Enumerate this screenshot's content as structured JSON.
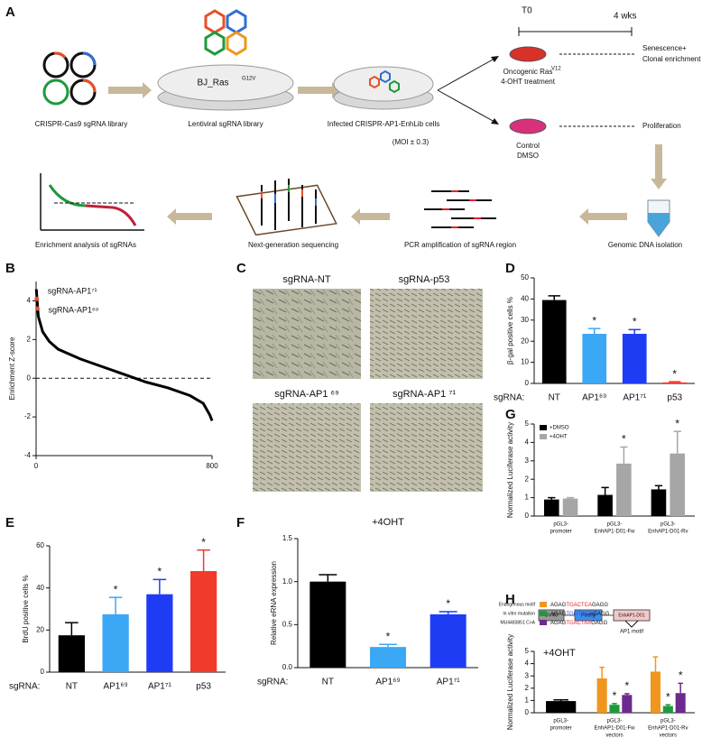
{
  "panel_labels": [
    "A",
    "B",
    "C",
    "D",
    "E",
    "F",
    "G",
    "H"
  ],
  "panel_a": {
    "timeline": [
      "T0",
      "4 wks"
    ],
    "library": "CRISPR-Cas9 sgRNA library",
    "dish_label": [
      "BJ_Ras",
      "G12V"
    ],
    "lentiviral": "Lentiviral sgRNA library",
    "infected": [
      "Infected CRISPR-AP1-EnhLib cells",
      "(MOI ± 0.3)"
    ],
    "treatment": [
      "Oncogenic Ras",
      "V12",
      "4-OHT treatment"
    ],
    "senescence": [
      "Senescence+",
      "Clonal enrichment"
    ],
    "control": [
      "Control",
      "DMSO"
    ],
    "proliferation": "Proliferation",
    "genomic": "Genomic DNA isolation",
    "pcr": "PCR amplification of sgRNA region",
    "ngs": "Next-generation sequencing",
    "analysis": "Enrichment analysis of sgRNAs"
  },
  "panel_c": {
    "labels": [
      "sgRNA-NT",
      "sgRNA-p53",
      "sgRNA-AP1 ⁶⁹",
      "sgRNA-AP1 ⁷¹"
    ]
  },
  "chart_data": [
    {
      "type": "line",
      "ylabel": "Enrichment Z-score",
      "x": [
        1,
        10,
        30,
        60,
        100,
        200,
        300,
        400,
        500,
        600,
        700,
        760,
        790,
        800
      ],
      "values": [
        4.6,
        3.2,
        2.4,
        1.9,
        1.5,
        1.0,
        0.6,
        0.2,
        -0.2,
        -0.5,
        -0.9,
        -1.3,
        -1.9,
        -2.2
      ],
      "color": "#000000",
      "reference_line": 0,
      "highlights": [
        {
          "label": "sgRNA-AP1⁷¹",
          "x": 3,
          "y": 4.1,
          "color": "#e8502a"
        },
        {
          "label": "sgRNA-AP1⁶⁹",
          "x": 6,
          "y": 3.6,
          "color": "#e8502a"
        }
      ],
      "xlim": [
        0,
        800
      ],
      "xticks": [
        0,
        800
      ],
      "ylim": [
        -4,
        5
      ],
      "yticks": [
        -4,
        -2,
        0,
        2,
        4
      ]
    },
    {
      "type": "bar",
      "ylabel": "β-gal positive cells %",
      "xlabel": "sgRNA:",
      "categories": [
        "NT",
        "AP1⁶⁹",
        "AP1⁷¹",
        "p53"
      ],
      "values": [
        39.5,
        23.5,
        23.5,
        0.5
      ],
      "errors": [
        2,
        2.5,
        2,
        0.3
      ],
      "colors": [
        "#000000",
        "#3ba8f5",
        "#1f3cf5",
        "#f03a2a"
      ],
      "significance": [
        null,
        "*",
        "*",
        "*"
      ],
      "ylim": [
        0,
        50
      ],
      "yticks": [
        0,
        10,
        20,
        30,
        40,
        50
      ]
    },
    {
      "type": "bar",
      "ylabel": "Normalized Luciferase activity",
      "categories": [
        [
          "pGL3-",
          "promoter"
        ],
        [
          "pGL3-",
          "EnhAP1-D01-Fw"
        ],
        [
          "pGL3-",
          "EnhAP1-D01-Rv"
        ]
      ],
      "series": [
        {
          "name": "+DMSO",
          "color": "#000000",
          "values": [
            0.9,
            1.15,
            1.45
          ],
          "errors": [
            0.1,
            0.4,
            0.2
          ]
        },
        {
          "name": "+4OHT",
          "color": "#a6a6a6",
          "values": [
            0.95,
            2.85,
            3.4
          ],
          "errors": [
            0.05,
            0.9,
            1.2
          ],
          "significance": [
            null,
            "*",
            "*"
          ]
        }
      ],
      "legend": "upper left",
      "ylim": [
        0,
        5
      ],
      "yticks": [
        0,
        1,
        2,
        3,
        4,
        5
      ]
    },
    {
      "type": "bar",
      "ylabel": "Normalized Luciferase activity",
      "title": "+4OHT",
      "construct": [
        "SV40",
        "Firefly",
        "EnhAP1-D01",
        "AP1 motif"
      ],
      "categories": [
        [
          "pGL3-",
          "promoter"
        ],
        [
          "pGL3-",
          "EnhAP1-D01-Fw",
          "vectors"
        ],
        [
          "pGL3-",
          "EnhAP1-D01-Rv",
          "vectors"
        ]
      ],
      "series": [
        {
          "color": "#000000",
          "values": [
            0.95,
            null,
            null
          ],
          "errors": [
            0.1,
            null,
            null
          ]
        },
        {
          "name": "Endogenous motif",
          "color": "#f0961e",
          "motif": [
            "AGAG",
            "TGACTCA",
            "GAGG"
          ],
          "motif_color": "#e8202a",
          "values": [
            null,
            2.8,
            3.35
          ],
          "errors": [
            null,
            0.9,
            1.2
          ]
        },
        {
          "name": "In vitro mutation",
          "color": "#1e9a3c",
          "motif": [
            "AGAG",
            "TGGTGCC",
            "GAGG"
          ],
          "motif_color": "#3050d0",
          "values": [
            null,
            0.65,
            0.55
          ],
          "errors": [
            null,
            0.1,
            0.1
          ],
          "significance": [
            null,
            "*",
            "*"
          ]
        },
        {
          "name": "MU4483851 C>A",
          "color": "#6c2a8e",
          "motif": [
            "AGAG",
            "TGACTAA",
            "GAGG"
          ],
          "motif_color": "#e8202a",
          "values": [
            null,
            1.45,
            1.6
          ],
          "errors": [
            null,
            0.1,
            0.8
          ],
          "significance": [
            null,
            "*",
            "*"
          ]
        }
      ],
      "legend": "upper left",
      "ylim": [
        0,
        5
      ],
      "yticks": [
        0,
        1,
        2,
        3,
        4,
        5
      ]
    },
    {
      "type": "bar",
      "ylabel": "BrdU positive cells %",
      "xlabel": "sgRNA:",
      "categories": [
        "NT",
        "AP1⁶⁹",
        "AP1⁷¹",
        "p53"
      ],
      "values": [
        17.5,
        27.5,
        37,
        48
      ],
      "errors": [
        6,
        8,
        7,
        10
      ],
      "colors": [
        "#000000",
        "#3ba8f5",
        "#1f3cf5",
        "#f03a2a"
      ],
      "significance": [
        null,
        "*",
        "*",
        "*"
      ],
      "ylim": [
        0,
        60
      ],
      "yticks": [
        0,
        20,
        40,
        60
      ]
    },
    {
      "type": "bar",
      "ylabel": "Relative eRNA expression",
      "xlabel": "sgRNA:",
      "title": "+4OHT",
      "categories": [
        "NT",
        "AP1⁶⁹",
        "AP1⁷¹"
      ],
      "values": [
        1.0,
        0.24,
        0.62
      ],
      "errors": [
        0.08,
        0.03,
        0.03
      ],
      "colors": [
        "#000000",
        "#3ba8f5",
        "#1f3cf5"
      ],
      "significance": [
        null,
        "*",
        "*"
      ],
      "ylim": [
        0,
        1.5
      ],
      "yticks": [
        {
          "value": 0,
          "label": "0.0"
        },
        {
          "value": 0.5,
          "label": "0.5"
        },
        {
          "value": 1,
          "label": "1.0"
        },
        {
          "value": 1.5,
          "label": "1.5"
        }
      ]
    }
  ]
}
